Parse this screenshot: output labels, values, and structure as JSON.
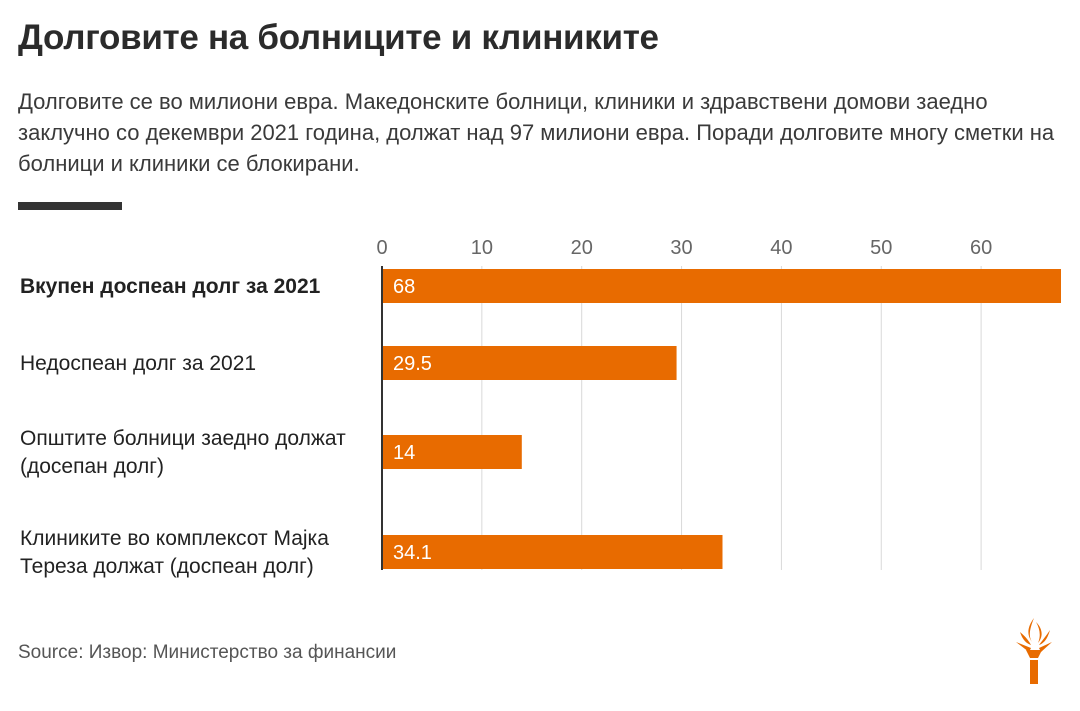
{
  "header": {
    "title": "Долговите на болниците и клиниките",
    "subtitle": "Долговите се во милиони евра. Македонските болници, клиники и здравствени домови заедно заклучно со декември 2021 година, должат над 97 милиони евра. Поради долговите многу сметки на болници и клиники се блокирани."
  },
  "footer": {
    "source": "Source: Извор: Министерство за финансии",
    "logo_icon": "torch-icon"
  },
  "chart_data": {
    "type": "bar",
    "orientation": "horizontal",
    "categories": [
      [
        "Вкупен доспеан долг за 2021"
      ],
      [
        "Недоспеан долг за 2021"
      ],
      [
        "Општите болници заедно должат",
        "(досепан долг)"
      ],
      [
        "Клиниките во комплексот Мајка",
        "Тереза должат (доспеан долг)"
      ]
    ],
    "bold_category_index": 0,
    "values": [
      68,
      29.5,
      14,
      34.1
    ],
    "value_labels": [
      "68",
      "29.5",
      "14",
      "34.1"
    ],
    "xticks": [
      "0",
      "10",
      "20",
      "30",
      "40",
      "50",
      "60"
    ],
    "xlim": [
      0,
      68
    ],
    "grid": true,
    "ticks_position": "top",
    "bar_color": "#E86B00",
    "grid_color": "#d9d9d9",
    "axis_color": "#333333"
  }
}
